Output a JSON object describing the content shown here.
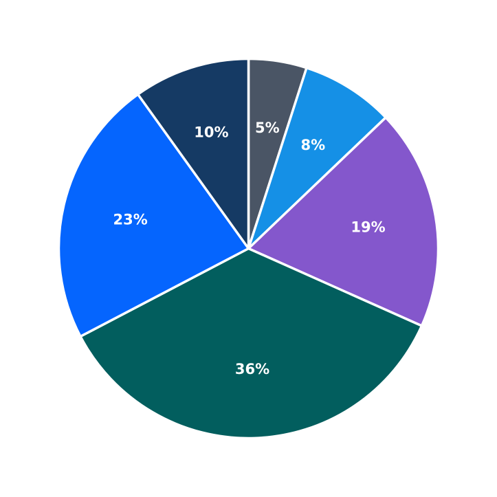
{
  "chart_data": {
    "type": "pie",
    "title": "",
    "start_angle_deg": 0,
    "direction": "clockwise",
    "slices": [
      {
        "label": "5%",
        "value": 5,
        "color": "#4a5565"
      },
      {
        "label": "8%",
        "value": 8,
        "color": "#1590e6"
      },
      {
        "label": "19%",
        "value": 19,
        "color": "#8457cc"
      },
      {
        "label": "36%",
        "value": 36,
        "color": "#025e5e"
      },
      {
        "label": "23%",
        "value": 23,
        "color": "#0565fe"
      },
      {
        "label": "10%",
        "value": 10,
        "color": "#153a64"
      }
    ]
  }
}
